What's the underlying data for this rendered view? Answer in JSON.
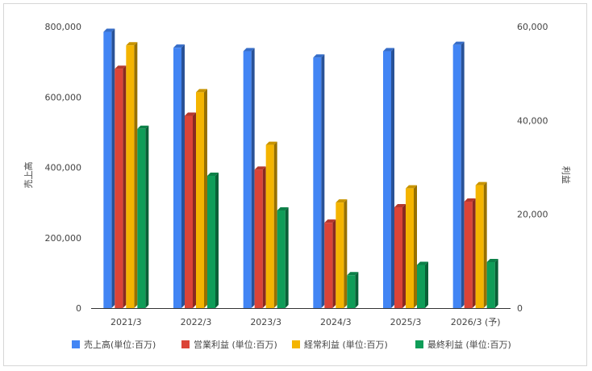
{
  "chart_data": {
    "type": "bar",
    "categories": [
      "2021/3",
      "2022/3",
      "2023/3",
      "2024/3",
      "2025/3",
      "2026/3 (予)"
    ],
    "left_axis": {
      "label": "売上高",
      "ylim": [
        0,
        800000
      ],
      "ticks": [
        "0",
        "200,000",
        "400,000",
        "600,000",
        "800,000"
      ],
      "tick_values": [
        0,
        200000,
        400000,
        600000,
        800000
      ]
    },
    "right_axis": {
      "label": "利益",
      "ylim": [
        0,
        60000
      ],
      "ticks": [
        "0",
        "20,000",
        "40,000",
        "60,000"
      ],
      "tick_values": [
        0,
        20000,
        40000,
        60000
      ]
    },
    "series": [
      {
        "name": "売上高(単位:百万)",
        "axis": "left",
        "color": "#4285f4",
        "values": [
          785000,
          740000,
          730000,
          712000,
          730000,
          748000
        ]
      },
      {
        "name": "営業利益 (単位:百万)",
        "axis": "right",
        "color": "#db4437",
        "values": [
          51000,
          41000,
          29500,
          18200,
          21500,
          22700
        ]
      },
      {
        "name": "経常利益 (単位:百万)",
        "axis": "right",
        "color": "#f4b400",
        "values": [
          56000,
          46000,
          34800,
          22500,
          25500,
          26200
        ]
      },
      {
        "name": "最終利益 (単位:百万)",
        "axis": "right",
        "color": "#0f9d58",
        "values": [
          38200,
          28200,
          20800,
          7000,
          9200,
          9800
        ]
      }
    ],
    "grid": false,
    "legend": "bottom"
  }
}
